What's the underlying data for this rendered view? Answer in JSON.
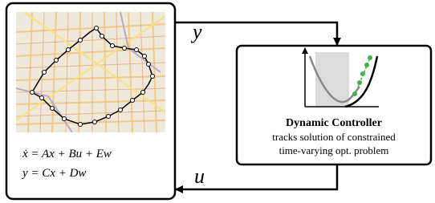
{
  "plant": {
    "state_equation": "ẋ = Ax + Bu + Ew",
    "output_equation": "y = Cx + Dw"
  },
  "signals": {
    "output": "y",
    "input": "u"
  },
  "controller": {
    "title": "Dynamic Controller",
    "description": [
      "tracks solution of constrained",
      "time-varying opt. problem"
    ]
  }
}
